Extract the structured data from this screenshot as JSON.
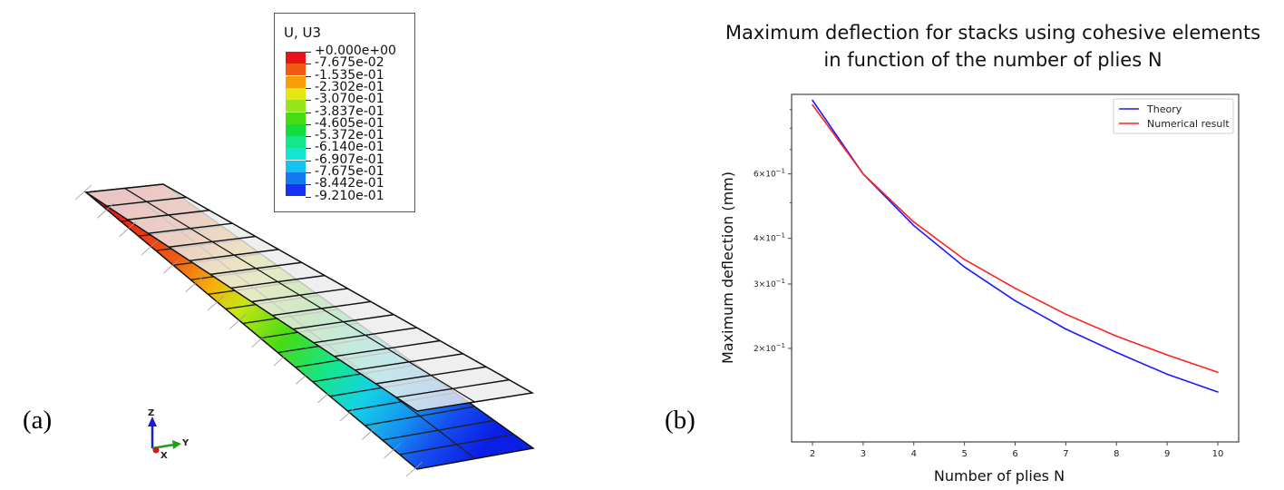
{
  "panels": {
    "a_label": "(a)",
    "b_label": "(b)"
  },
  "contour_legend": {
    "title": "U, U3",
    "values": [
      "+0.000e+00",
      "-7.675e-02",
      "-1.535e-01",
      "-2.302e-01",
      "-3.070e-01",
      "-3.837e-01",
      "-4.605e-01",
      "-5.372e-01",
      "-6.140e-01",
      "-6.907e-01",
      "-7.675e-01",
      "-8.442e-01",
      "-9.210e-01"
    ],
    "colors": [
      "#e8141a",
      "#f05a14",
      "#f5a00a",
      "#e6e614",
      "#96e61e",
      "#46dc14",
      "#14dc3c",
      "#14e68c",
      "#14e6d2",
      "#14c3f0",
      "#1478f0",
      "#1432f0"
    ]
  },
  "triad": {
    "z": "Z",
    "y": "Y",
    "x": "X"
  },
  "chart_data": {
    "type": "line",
    "title_lines": [
      "Maximum deflection for stacks using cohesive elements",
      "in function of the number of plies N"
    ],
    "xlabel": "Number of plies N",
    "ylabel": "Maximum deflection (mm)",
    "yscale": "log",
    "x": [
      2,
      3,
      4,
      5,
      6,
      7,
      8,
      9,
      10
    ],
    "xlim": [
      1.6,
      10.4
    ],
    "ylim": [
      0.111,
      0.99
    ],
    "xticks": [
      "2",
      "3",
      "4",
      "5",
      "6",
      "7",
      "8",
      "9",
      "10"
    ],
    "yticks": [
      {
        "value": 0.6,
        "mant": "6",
        "base": "×10",
        "exp": "−1"
      },
      {
        "value": 0.4,
        "mant": "4",
        "base": "×10",
        "exp": "−1"
      },
      {
        "value": 0.3,
        "mant": "3",
        "base": "×10",
        "exp": "−1"
      },
      {
        "value": 0.2,
        "mant": "2",
        "base": "×10",
        "exp": "−1"
      }
    ],
    "legend_position": "top-right",
    "series": [
      {
        "name": "Theory",
        "color": "#1a1aff",
        "values": [
          0.954,
          0.6,
          0.433,
          0.334,
          0.27,
          0.226,
          0.195,
          0.17,
          0.152
        ]
      },
      {
        "name": "Numerical result",
        "color": "#ff2020",
        "values": [
          0.927,
          0.6,
          0.443,
          0.35,
          0.292,
          0.248,
          0.216,
          0.192,
          0.172
        ]
      }
    ]
  }
}
